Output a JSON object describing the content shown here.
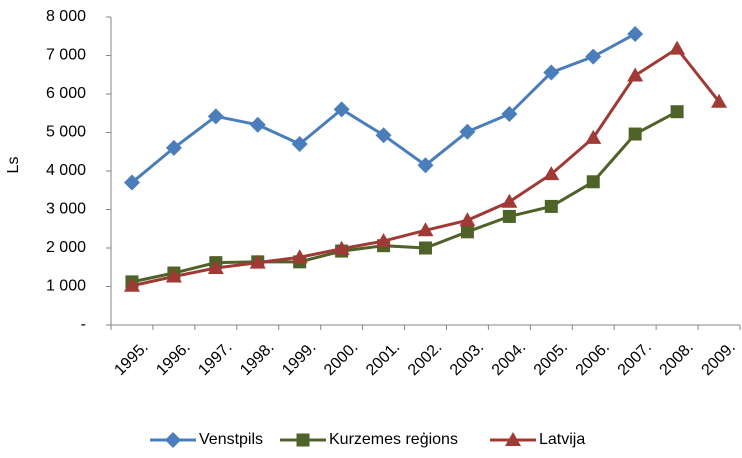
{
  "chart_data": {
    "type": "line",
    "y_label": "Ls",
    "categories": [
      "1995.",
      "1996.",
      "1997.",
      "1998.",
      "1999.",
      "2000.",
      "2001.",
      "2002.",
      "2003.",
      "2004.",
      "2005.",
      "2006.",
      "2007.",
      "2008.",
      "2009."
    ],
    "series": [
      {
        "name": "Venstpils",
        "color": "#4a7ebb",
        "marker": "diamond",
        "values": [
          3700,
          4600,
          5420,
          5200,
          4700,
          5600,
          4930,
          4150,
          5020,
          5480,
          6560,
          6970,
          7560,
          null,
          null
        ]
      },
      {
        "name": "Kurzemes reģions",
        "color": "#4f6228",
        "marker": "square",
        "values": [
          1120,
          1350,
          1620,
          1640,
          1640,
          1920,
          2060,
          2000,
          2420,
          2820,
          3080,
          3720,
          4960,
          5540,
          null
        ]
      },
      {
        "name": "Latvija",
        "color": "#a03a36",
        "marker": "triangle",
        "values": [
          1020,
          1260,
          1480,
          1620,
          1760,
          1980,
          2180,
          2460,
          2720,
          3200,
          3920,
          4860,
          6480,
          7180,
          5800
        ]
      }
    ],
    "ylim": [
      0,
      8000
    ],
    "yticks": [
      {
        "value": 0,
        "label": "-"
      },
      {
        "value": 1000,
        "label": "1 000"
      },
      {
        "value": 2000,
        "label": "2 000"
      },
      {
        "value": 3000,
        "label": "3 000"
      },
      {
        "value": 4000,
        "label": "4 000"
      },
      {
        "value": 5000,
        "label": "5 000"
      },
      {
        "value": 6000,
        "label": "6 000"
      },
      {
        "value": 7000,
        "label": "7 000"
      },
      {
        "value": 8000,
        "label": "8 000"
      }
    ],
    "grid": false,
    "legend": "bottom"
  }
}
